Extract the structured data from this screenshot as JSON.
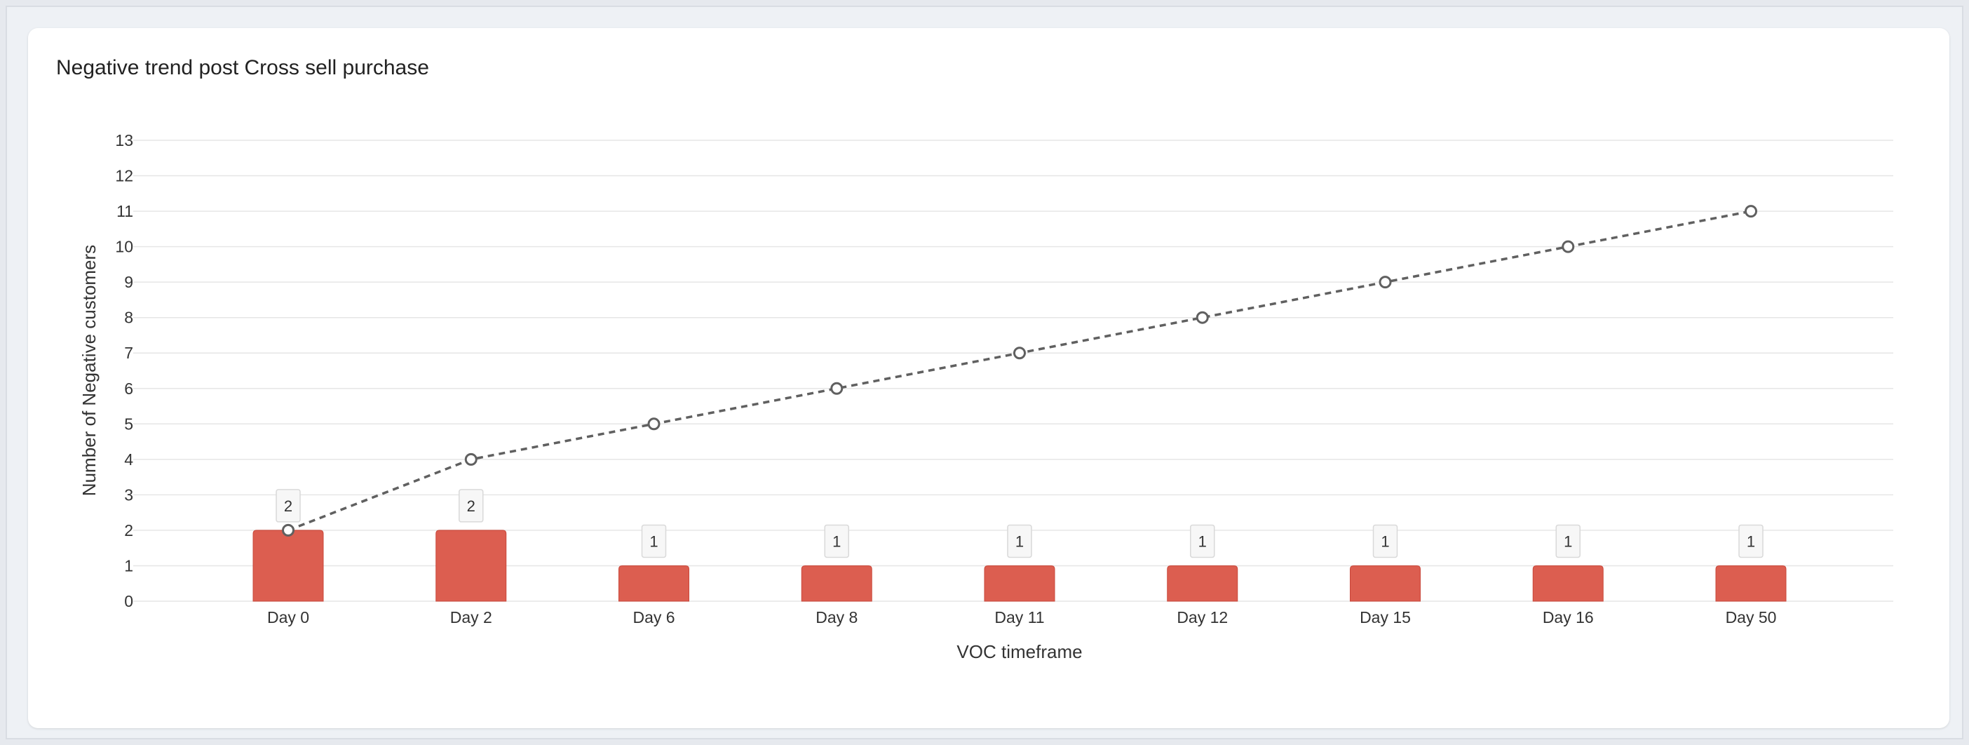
{
  "colors": {
    "bar": "#dc5e50",
    "bar_border": "#c9483b",
    "line": "#606060",
    "grid": "#e6e6e6",
    "label_bg": "#f7f7f7",
    "label_border": "#d9d9d9"
  },
  "chart_data": {
    "type": "bar",
    "title": "Negative trend post Cross sell purchase",
    "xlabel": "VOC timeframe",
    "ylabel": "Number of Negative customers",
    "categories": [
      "Day 0",
      "Day 2",
      "Day 6",
      "Day 8",
      "Day 11",
      "Day 12",
      "Day 15",
      "Day 16",
      "Day 50"
    ],
    "ylim": [
      0,
      13
    ],
    "yticks": [
      0,
      1,
      2,
      3,
      4,
      5,
      6,
      7,
      8,
      9,
      10,
      11,
      12,
      13
    ],
    "grid": true,
    "series": [
      {
        "type": "bar",
        "values": [
          2,
          2,
          1,
          1,
          1,
          1,
          1,
          1,
          1
        ],
        "data_labels": true
      },
      {
        "type": "line",
        "line_style": "dashed",
        "marker": "open-circle",
        "values": [
          2,
          4,
          5,
          6,
          7,
          8,
          9,
          10,
          11
        ]
      }
    ]
  }
}
